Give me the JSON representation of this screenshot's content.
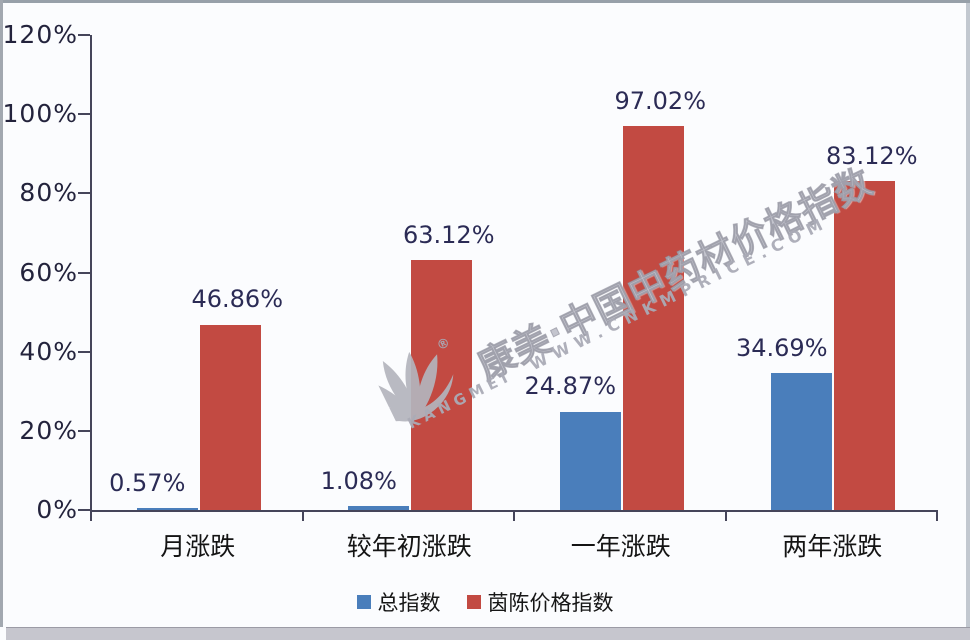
{
  "chart_data": {
    "type": "bar",
    "title": "",
    "categories": [
      "月涨跌",
      "较年初涨跌",
      "一年涨跌",
      "两年涨跌"
    ],
    "series": [
      {
        "name": "总指数",
        "color": "#4A7EBB",
        "values": [
          0.57,
          1.08,
          24.87,
          34.69
        ]
      },
      {
        "name": "茵陈价格指数",
        "color": "#C24A42",
        "values": [
          46.86,
          63.12,
          97.02,
          83.12
        ]
      }
    ],
    "value_labels": [
      [
        "0.57%",
        "1.08%",
        "24.87%",
        "34.69%"
      ],
      [
        "46.86%",
        "63.12%",
        "97.02%",
        "83.12%"
      ]
    ],
    "y_ticks": [
      "0%",
      "20%",
      "40%",
      "60%",
      "80%",
      "100%",
      "120%"
    ],
    "ylim": [
      0,
      120
    ],
    "xlabel": "",
    "ylabel": "",
    "grid": false,
    "legend_position": "bottom"
  },
  "watermark": {
    "brand_cn": "康美·中国中药材价格指数",
    "wordmark": "KANGMEI",
    "url": "WWW.CNKMPRICE.COM",
    "registered": "®"
  },
  "colors": {
    "series1_blue": "#4A7EBB",
    "series2_red": "#C24A42",
    "axis": "#45455A",
    "y_tick_label": "#23233C",
    "value_label": "#2B2B55",
    "category_label": "#141414",
    "watermark_gray": "#B7B8C0",
    "background": "#FBFCFE"
  }
}
